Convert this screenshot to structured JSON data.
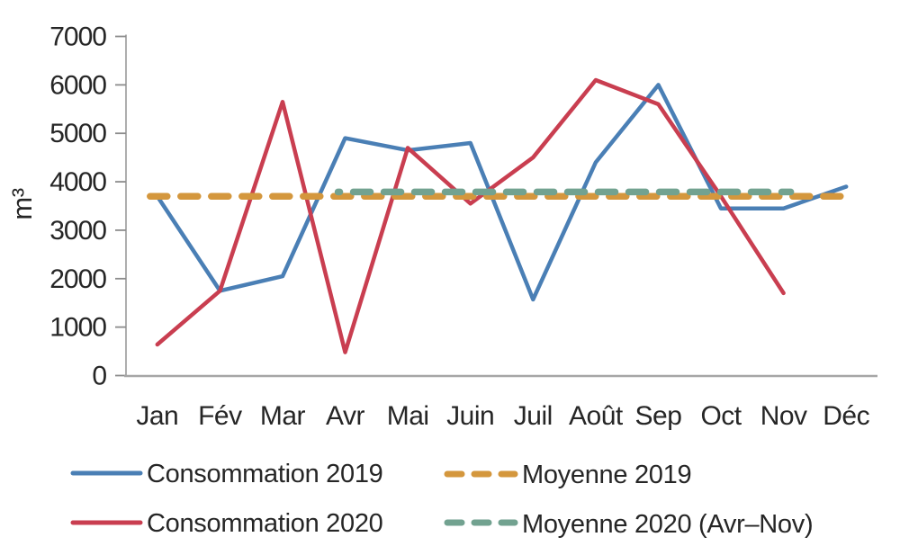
{
  "chart_data": {
    "type": "line",
    "title": "",
    "xlabel": "",
    "ylabel": "m³",
    "ylim": [
      0,
      7000
    ],
    "y_ticks": [
      0,
      1000,
      2000,
      3000,
      4000,
      5000,
      6000,
      7000
    ],
    "grid": false,
    "legend_position": "bottom",
    "categories": [
      "Jan",
      "Fév",
      "Mar",
      "Avr",
      "Mai",
      "Juin",
      "Juil",
      "Août",
      "Sep",
      "Oct",
      "Nov",
      "Déc"
    ],
    "series": [
      {
        "name": "Consommation 2019",
        "style": "solid",
        "color": "#4a7fb5",
        "values": [
          3700,
          1750,
          2050,
          4900,
          4650,
          4800,
          1570,
          4400,
          6000,
          3450,
          3450,
          3900
        ]
      },
      {
        "name": "Consommation 2020",
        "style": "solid",
        "color": "#c93e50",
        "values": [
          640,
          1750,
          5650,
          480,
          4700,
          3550,
          4500,
          6100,
          5600,
          3700,
          1700,
          null
        ]
      },
      {
        "name": "Moyenne 2019",
        "style": "dashed",
        "color": "#d4973d",
        "value": 3700,
        "span_categories": [
          "Jan",
          "Déc"
        ]
      },
      {
        "name": "Moyenne 2020 (Avr–Nov)",
        "style": "dashed",
        "color": "#72a290",
        "value": 3790,
        "span_categories": [
          "Avr",
          "Nov"
        ]
      }
    ],
    "axis_color": "#a6a6a6",
    "tick_color": "#8c8c8c",
    "text_color": "#262626"
  }
}
